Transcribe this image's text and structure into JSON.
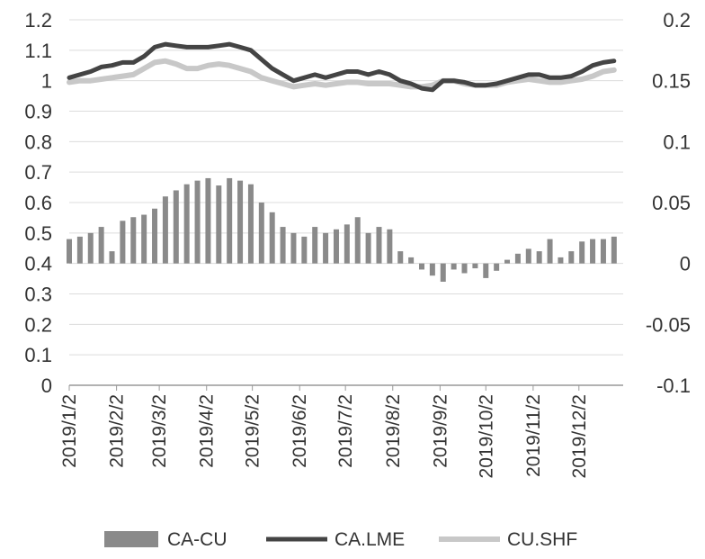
{
  "chart_data": {
    "type": "bar+line",
    "title": "",
    "x_ticks": [
      "2019/1/2",
      "2019/2/2",
      "2019/3/2",
      "2019/4/2",
      "2019/5/2",
      "2019/6/2",
      "2019/7/2",
      "2019/8/2",
      "2019/9/2",
      "2019/10/2",
      "2019/11/2",
      "2019/12/2"
    ],
    "left_axis": {
      "ylim": [
        0,
        1.2
      ],
      "ticks": [
        "0",
        "0.1",
        "0.2",
        "0.3",
        "0.4",
        "0.5",
        "0.6",
        "0.7",
        "0.8",
        "0.9",
        "1",
        "1.1",
        "1.2"
      ]
    },
    "right_axis": {
      "ylim": [
        -0.1,
        0.2
      ],
      "ticks": [
        "-0.1",
        "-0.05",
        "0",
        "0.05",
        "0.1",
        "0.15",
        "0.2"
      ]
    },
    "grid": true,
    "legend_position": "bottom",
    "legend": {
      "bar": "CA-CU",
      "line1": "CA.LME",
      "line2": "CU.SHF"
    },
    "series": [
      {
        "name": "CA-CU",
        "type": "bar",
        "axis": "right",
        "color": "#8a8a8a",
        "x": [
          "2019/1/2",
          "2019/1/9",
          "2019/1/16",
          "2019/1/23",
          "2019/1/30",
          "2019/2/6",
          "2019/2/13",
          "2019/2/20",
          "2019/2/27",
          "2019/3/6",
          "2019/3/13",
          "2019/3/20",
          "2019/3/27",
          "2019/4/3",
          "2019/4/10",
          "2019/4/17",
          "2019/4/24",
          "2019/5/1",
          "2019/5/8",
          "2019/5/15",
          "2019/5/22",
          "2019/5/29",
          "2019/6/5",
          "2019/6/12",
          "2019/6/19",
          "2019/6/26",
          "2019/7/3",
          "2019/7/10",
          "2019/7/17",
          "2019/7/24",
          "2019/7/31",
          "2019/8/7",
          "2019/8/14",
          "2019/8/21",
          "2019/8/28",
          "2019/9/4",
          "2019/9/11",
          "2019/9/18",
          "2019/9/25",
          "2019/10/2",
          "2019/10/9",
          "2019/10/16",
          "2019/10/23",
          "2019/10/30",
          "2019/11/6",
          "2019/11/13",
          "2019/11/20",
          "2019/11/27",
          "2019/12/4",
          "2019/12/11",
          "2019/12/18",
          "2019/12/25"
        ],
        "values": [
          0.02,
          0.022,
          0.025,
          0.03,
          0.01,
          0.035,
          0.038,
          0.04,
          0.045,
          0.055,
          0.06,
          0.065,
          0.068,
          0.07,
          0.064,
          0.07,
          0.068,
          0.065,
          0.05,
          0.042,
          0.03,
          0.025,
          0.022,
          0.03,
          0.025,
          0.028,
          0.032,
          0.038,
          0.025,
          0.03,
          0.028,
          0.01,
          0.005,
          -0.005,
          -0.01,
          -0.015,
          -0.005,
          -0.008,
          -0.004,
          -0.012,
          -0.006,
          0.003,
          0.008,
          0.012,
          0.01,
          0.02,
          0.005,
          0.01,
          0.018,
          0.02,
          0.02,
          0.022
        ]
      },
      {
        "name": "CA.LME",
        "type": "line",
        "axis": "left",
        "color": "#444444",
        "x": [
          "2019/1/2",
          "2019/1/9",
          "2019/1/16",
          "2019/1/23",
          "2019/1/30",
          "2019/2/6",
          "2019/2/13",
          "2019/2/20",
          "2019/2/27",
          "2019/3/6",
          "2019/3/13",
          "2019/3/20",
          "2019/3/27",
          "2019/4/3",
          "2019/4/10",
          "2019/4/17",
          "2019/4/24",
          "2019/5/1",
          "2019/5/8",
          "2019/5/15",
          "2019/5/22",
          "2019/5/29",
          "2019/6/5",
          "2019/6/12",
          "2019/6/19",
          "2019/6/26",
          "2019/7/3",
          "2019/7/10",
          "2019/7/17",
          "2019/7/24",
          "2019/7/31",
          "2019/8/7",
          "2019/8/14",
          "2019/8/21",
          "2019/8/28",
          "2019/9/4",
          "2019/9/11",
          "2019/9/18",
          "2019/9/25",
          "2019/10/2",
          "2019/10/9",
          "2019/10/16",
          "2019/10/23",
          "2019/10/30",
          "2019/11/6",
          "2019/11/13",
          "2019/11/20",
          "2019/11/27",
          "2019/12/4",
          "2019/12/11",
          "2019/12/18",
          "2019/12/25"
        ],
        "values": [
          1.01,
          1.02,
          1.03,
          1.045,
          1.05,
          1.06,
          1.06,
          1.08,
          1.11,
          1.12,
          1.115,
          1.11,
          1.11,
          1.11,
          1.115,
          1.12,
          1.11,
          1.1,
          1.07,
          1.04,
          1.02,
          1.0,
          1.01,
          1.02,
          1.01,
          1.02,
          1.03,
          1.03,
          1.02,
          1.03,
          1.02,
          1.0,
          0.99,
          0.975,
          0.97,
          1.0,
          1.0,
          0.995,
          0.985,
          0.985,
          0.99,
          1.0,
          1.01,
          1.02,
          1.02,
          1.01,
          1.01,
          1.015,
          1.03,
          1.05,
          1.06,
          1.065
        ]
      },
      {
        "name": "CU.SHF",
        "type": "line",
        "axis": "left",
        "color": "#c8c8c8",
        "x": [
          "2019/1/2",
          "2019/1/9",
          "2019/1/16",
          "2019/1/23",
          "2019/1/30",
          "2019/2/6",
          "2019/2/13",
          "2019/2/20",
          "2019/2/27",
          "2019/3/6",
          "2019/3/13",
          "2019/3/20",
          "2019/3/27",
          "2019/4/3",
          "2019/4/10",
          "2019/4/17",
          "2019/4/24",
          "2019/5/1",
          "2019/5/8",
          "2019/5/15",
          "2019/5/22",
          "2019/5/29",
          "2019/6/5",
          "2019/6/12",
          "2019/6/19",
          "2019/6/26",
          "2019/7/3",
          "2019/7/10",
          "2019/7/17",
          "2019/7/24",
          "2019/7/31",
          "2019/8/7",
          "2019/8/14",
          "2019/8/21",
          "2019/8/28",
          "2019/9/4",
          "2019/9/11",
          "2019/9/18",
          "2019/9/25",
          "2019/10/2",
          "2019/10/9",
          "2019/10/16",
          "2019/10/23",
          "2019/10/30",
          "2019/11/6",
          "2019/11/13",
          "2019/11/20",
          "2019/11/27",
          "2019/12/4",
          "2019/12/11",
          "2019/12/18",
          "2019/12/25"
        ],
        "values": [
          0.995,
          1.0,
          1.0,
          1.005,
          1.01,
          1.015,
          1.02,
          1.04,
          1.06,
          1.065,
          1.055,
          1.04,
          1.04,
          1.05,
          1.055,
          1.05,
          1.04,
          1.03,
          1.01,
          1.0,
          0.99,
          0.98,
          0.985,
          0.99,
          0.985,
          0.99,
          0.995,
          0.995,
          0.99,
          0.99,
          0.99,
          0.985,
          0.98,
          0.98,
          0.985,
          1.0,
          1.0,
          0.99,
          0.985,
          0.985,
          0.985,
          0.995,
          1.0,
          1.005,
          1.0,
          0.995,
          0.995,
          1.0,
          1.005,
          1.015,
          1.03,
          1.035
        ]
      }
    ]
  }
}
